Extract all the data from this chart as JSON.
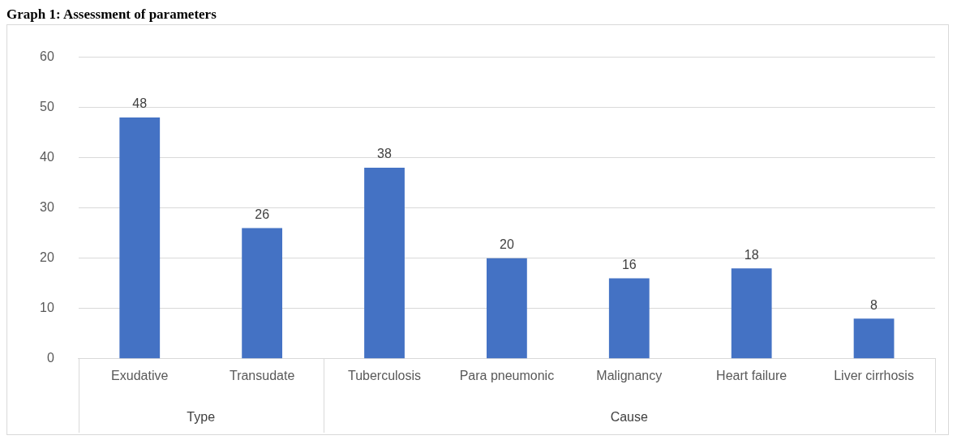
{
  "chart_data": {
    "type": "bar",
    "title": "Graph 1: Assessment of parameters",
    "categories": [
      "Exudative",
      "Transudate",
      "Tuberculosis",
      "Para pneumonic",
      "Malignancy",
      "Heart failure",
      "Liver cirrhosis"
    ],
    "values": [
      48,
      26,
      38,
      20,
      16,
      18,
      8
    ],
    "color": "#4472c4",
    "ylim": [
      0,
      60
    ],
    "yticks": [
      0,
      10,
      20,
      30,
      40,
      50,
      60
    ],
    "grid": "y",
    "data_labels": true,
    "legend": false,
    "annotations": [
      "Type",
      "Cause"
    ]
  }
}
